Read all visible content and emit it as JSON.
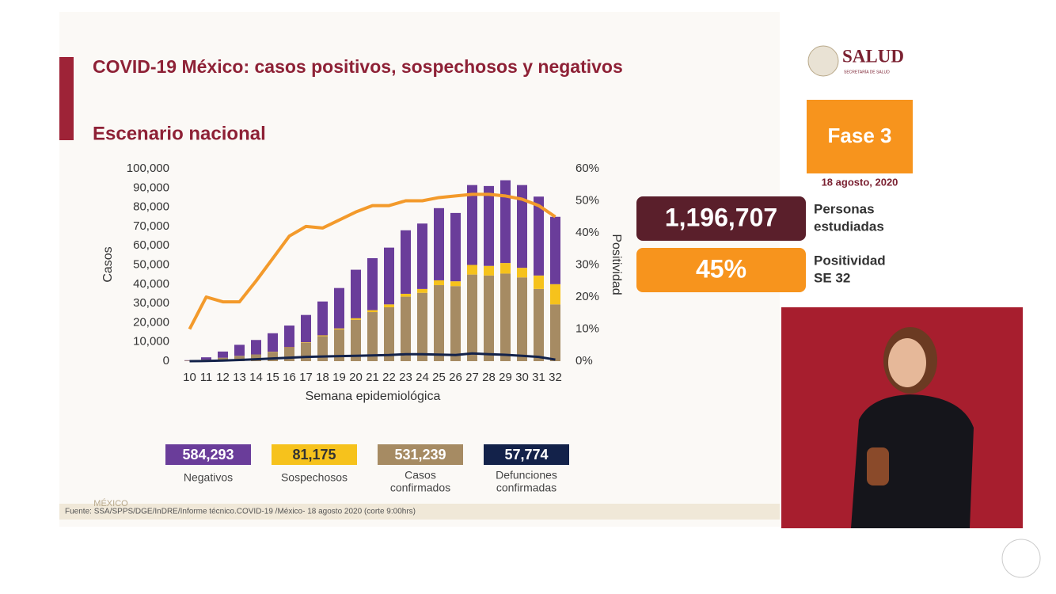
{
  "chart_data": {
    "type": "bar",
    "title": "COVID-19 México: casos positivos, sospechosos y negativos",
    "subtitle": "Escenario nacional",
    "ylabel": "Casos",
    "y2label": "Positividad",
    "xlabel": "Semana epidemiológica",
    "stacked": true,
    "categories": [
      "10",
      "11",
      "12",
      "13",
      "14",
      "15",
      "16",
      "17",
      "18",
      "19",
      "20",
      "21",
      "22",
      "23",
      "24",
      "25",
      "26",
      "27",
      "28",
      "29",
      "30",
      "31",
      "32"
    ],
    "series": [
      {
        "name": "Casos confirmados",
        "name_lines": [
          "Casos",
          "confirmados"
        ],
        "total": "531,239",
        "color": "#a68b63",
        "values": [
          300,
          800,
          1800,
          2800,
          3500,
          4800,
          7000,
          9500,
          13000,
          16500,
          21500,
          25500,
          28000,
          33500,
          35500,
          39500,
          39000,
          45000,
          44500,
          45500,
          43500,
          37500,
          29500
        ]
      },
      {
        "name": "Sospechosos",
        "name_lines": [
          "Sospechosos"
        ],
        "total": "81,175",
        "color": "#f6c21c",
        "values": [
          0,
          0,
          0,
          0,
          0,
          100,
          200,
          300,
          400,
          500,
          800,
          1000,
          1500,
          1500,
          2000,
          2500,
          2500,
          5000,
          5000,
          5500,
          5000,
          7000,
          10500
        ]
      },
      {
        "name": "Negativos",
        "name_lines": [
          "Negativos"
        ],
        "total": "584,293",
        "color": "#6a3d9a",
        "values": [
          200,
          1200,
          3200,
          5700,
          7500,
          9600,
          11300,
          14200,
          17600,
          21000,
          25200,
          27000,
          29500,
          33000,
          34000,
          37500,
          35500,
          41500,
          41500,
          43000,
          43000,
          41000,
          35000
        ]
      },
      {
        "type": "line",
        "name": "Defunciones confirmadas",
        "name_lines": [
          "Defunciones",
          "confirmadas"
        ],
        "total": "57,774",
        "color": "#13224a",
        "values": [
          0,
          100,
          300,
          600,
          1000,
          1400,
          1800,
          2200,
          2400,
          2600,
          2800,
          3000,
          3200,
          3600,
          3600,
          3400,
          3200,
          4000,
          3600,
          3300,
          2800,
          2200,
          800
        ]
      },
      {
        "type": "line",
        "axis": "y2",
        "color": "#f39a2b",
        "values": [
          10,
          20,
          18.5,
          18.5,
          25,
          32,
          39,
          42,
          41.5,
          44,
          46.5,
          48.5,
          48.5,
          50,
          50,
          51,
          51.5,
          52,
          52,
          51.5,
          50.5,
          48.5,
          45
        ]
      }
    ],
    "ylim": [
      0,
      100000
    ],
    "yticks": [
      0,
      {
        "value": 10000,
        "label": "10,000"
      },
      {
        "value": 20000,
        "label": "20,000"
      },
      {
        "value": 30000,
        "label": "30,000"
      },
      {
        "value": 40000,
        "label": "40,000"
      },
      {
        "value": 50000,
        "label": "50,000"
      },
      {
        "value": 60000,
        "label": "60,000"
      },
      {
        "value": 70000,
        "label": "70,000"
      },
      {
        "value": 80000,
        "label": "80,000"
      },
      {
        "value": 90000,
        "label": "90,000"
      },
      {
        "value": 100000,
        "label": "100,000"
      }
    ],
    "y2lim": [
      0,
      60
    ],
    "y2ticks": [
      {
        "value": 0,
        "label": "0%"
      },
      {
        "value": 10,
        "label": "10%"
      },
      {
        "value": 20,
        "label": "20%"
      },
      {
        "value": 30,
        "label": "30%"
      },
      {
        "value": 40,
        "label": "40%"
      },
      {
        "value": 50,
        "label": "50%"
      },
      {
        "value": 60,
        "label": "60%"
      }
    ],
    "grid": false
  },
  "header": {
    "logo": "SALUD",
    "logo_sub": "SECRETARÍA DE SALUD",
    "phase": "Fase 3",
    "date": "18 agosto, 2020"
  },
  "stats": [
    {
      "value": "1,196,707",
      "label_lines": [
        "Personas",
        "estudiadas"
      ]
    },
    {
      "value": "45%",
      "label_lines": [
        "Positividad",
        "SE 32"
      ]
    }
  ],
  "footer": {
    "source": "Fuente: SSA/SPPS/DGE/InDRE/Informe técnico.COVID-19 /México- 18 agosto 2020 (corte 9:00hrs)",
    "brand": "MÉXICO"
  }
}
